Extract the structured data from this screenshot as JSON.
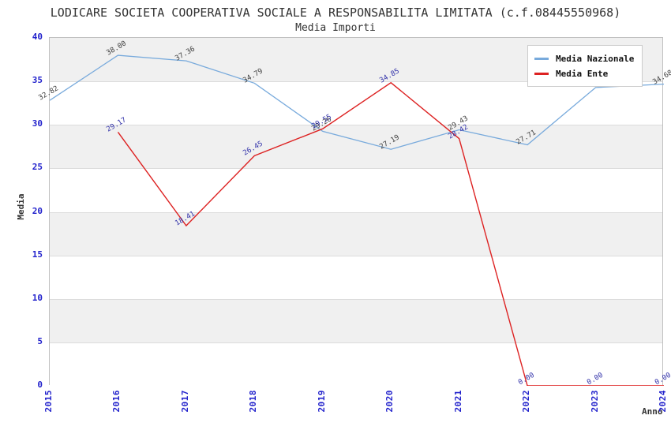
{
  "chart_data": {
    "type": "line",
    "title": "LODICARE SOCIETA COOPERATIVA SOCIALE A RESPONSABILITA LIMITATA (c.f.08445550968)",
    "subtitle": "Media Importi",
    "xlabel": "Anno",
    "ylabel": "Media",
    "categories": [
      "2015",
      "2016",
      "2017",
      "2018",
      "2019",
      "2020",
      "2021",
      "2022",
      "2023",
      "2024"
    ],
    "ylim": [
      0,
      40
    ],
    "yticks": [
      0,
      5,
      10,
      15,
      20,
      25,
      30,
      35,
      40
    ],
    "grid": "horizontal-bands",
    "legend_position": "top-right",
    "colors": {
      "tick_text": "#2222cc",
      "band_gray": "#f0f0f0",
      "gridline": "#dcdcdc",
      "plot_border": "#c0c0c0",
      "title_text": "#333333"
    },
    "series": [
      {
        "name": "Media Nazionale",
        "color": "#78aadc",
        "label_color": "#404040",
        "values": [
          32.82,
          38.0,
          37.36,
          34.79,
          29.26,
          27.19,
          29.43,
          27.71,
          34.3,
          34.68
        ],
        "point_labels": [
          "32.82",
          "38.00",
          "37.36",
          "34.79",
          "29.26",
          "27.19",
          "29.43",
          "27.71",
          "",
          "34.68"
        ]
      },
      {
        "name": "Media Ente",
        "color": "#dd2222",
        "label_color": "#3333aa",
        "values": [
          null,
          29.17,
          18.41,
          26.45,
          29.55,
          34.85,
          28.42,
          0.0,
          0.0,
          0.0
        ],
        "point_labels": [
          "",
          "29.17",
          "18.41",
          "26.45",
          "29.55",
          "34.85",
          "28.42",
          "0.00",
          "0.00",
          "0.00"
        ]
      }
    ]
  }
}
